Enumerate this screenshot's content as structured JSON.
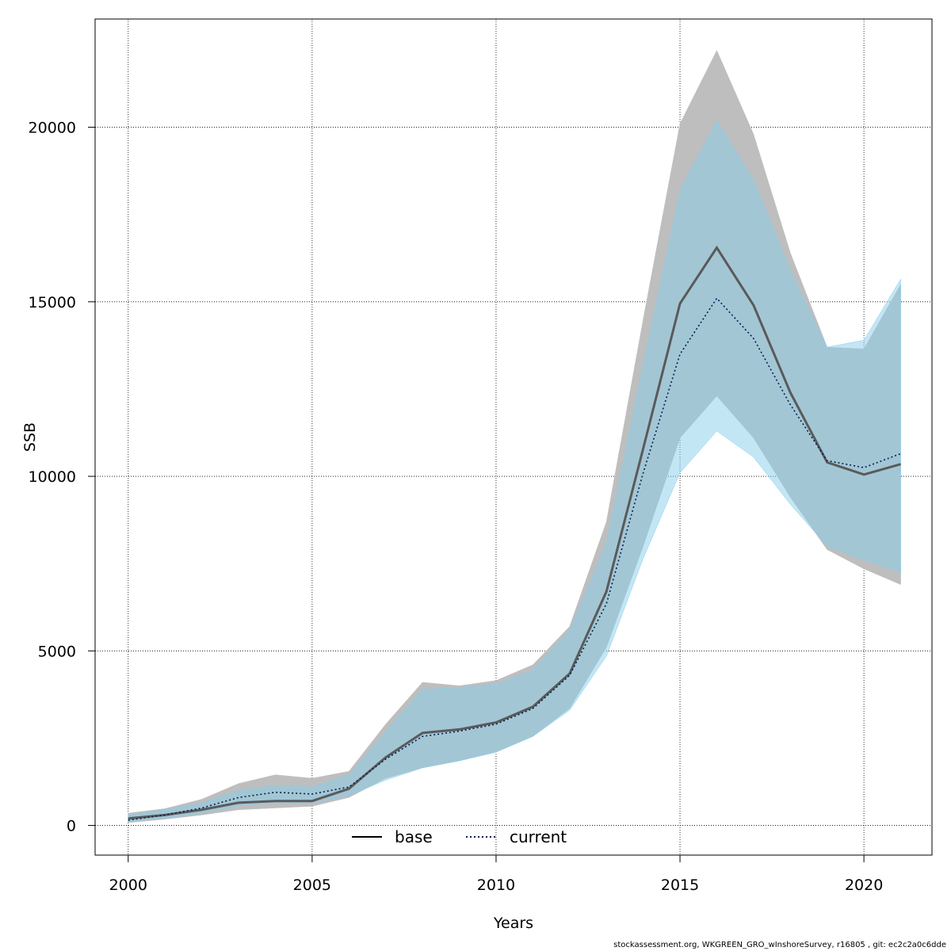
{
  "chart_data": {
    "type": "line",
    "title": "",
    "xlabel": "Years",
    "ylabel": "SSB",
    "xlim": [
      1999.1,
      2021.85
    ],
    "ylim": [
      -850,
      23100
    ],
    "x_ticks": [
      2000,
      2005,
      2010,
      2015,
      2020
    ],
    "y_ticks": [
      0,
      5000,
      10000,
      15000,
      20000
    ],
    "grid": true,
    "legend_position": "bottom-center",
    "x": [
      2000,
      2001,
      2002,
      2003,
      2004,
      2005,
      2006,
      2007,
      2008,
      2009,
      2010,
      2011,
      2012,
      2013,
      2014,
      2015,
      2016,
      2017,
      2018,
      2019,
      2020,
      2021
    ],
    "series": [
      {
        "name": "base",
        "line_style": "solid",
        "line_color": "#5a5a5a",
        "band_color": "#bebebe",
        "values": [
          200,
          300,
          450,
          650,
          700,
          700,
          1050,
          1950,
          2650,
          2750,
          2950,
          3400,
          4350,
          6700,
          10800,
          14950,
          16550,
          14900,
          12400,
          10400,
          10050,
          10350
        ],
        "lower": [
          80,
          180,
          300,
          450,
          500,
          550,
          800,
          1350,
          1650,
          1850,
          2100,
          2550,
          3350,
          5100,
          8000,
          11100,
          12300,
          11100,
          9400,
          7900,
          7350,
          6900
        ],
        "upper": [
          350,
          480,
          750,
          1200,
          1450,
          1350,
          1550,
          2900,
          4100,
          4000,
          4150,
          4600,
          5700,
          8700,
          14500,
          20100,
          22200,
          19800,
          16400,
          13700,
          13650,
          15500
        ]
      },
      {
        "name": "current",
        "line_style": "dotted",
        "line_color": "#00204d",
        "band_color": "#87ceeb",
        "values": [
          150,
          300,
          500,
          800,
          950,
          900,
          1100,
          1900,
          2550,
          2700,
          2900,
          3350,
          4300,
          6350,
          10100,
          13500,
          15100,
          13950,
          12050,
          10450,
          10250,
          10650
        ],
        "lower": [
          120,
          200,
          350,
          550,
          650,
          650,
          850,
          1300,
          1650,
          1850,
          2100,
          2550,
          3300,
          4850,
          7650,
          10100,
          11300,
          10550,
          9200,
          8000,
          7600,
          7250
        ],
        "upper": [
          300,
          450,
          650,
          1000,
          1150,
          1100,
          1450,
          2700,
          3900,
          3950,
          4050,
          4450,
          5600,
          8100,
          13200,
          18200,
          20200,
          18500,
          15900,
          13700,
          13900,
          15650
        ]
      }
    ]
  },
  "footer": "stockassessment.org, WKGREEN_GRO_wInshoreSurvey, r16805 , git: ec2c2a0c6dde"
}
